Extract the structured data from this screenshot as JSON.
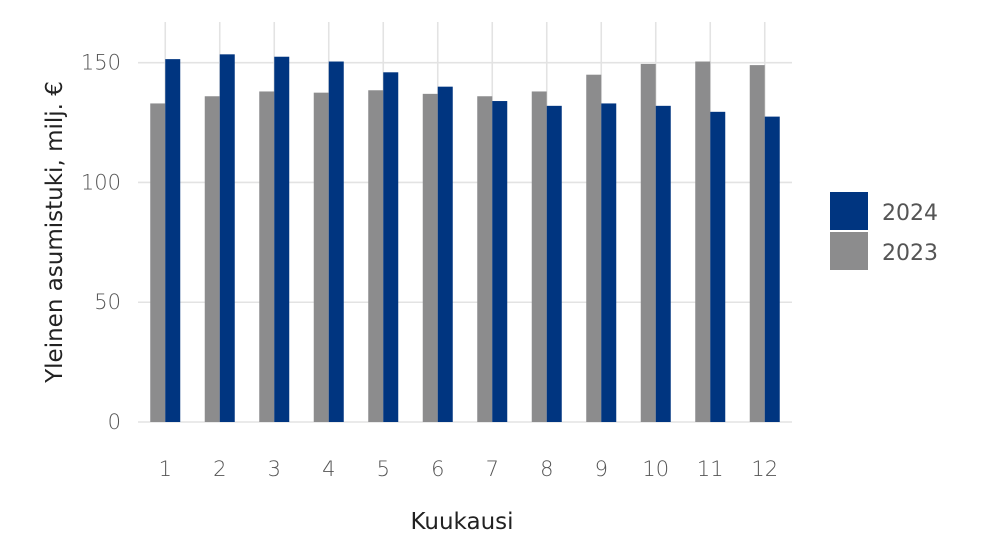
{
  "chart_data": {
    "type": "bar",
    "categories": [
      "1",
      "2",
      "3",
      "4",
      "5",
      "6",
      "7",
      "8",
      "9",
      "10",
      "11",
      "12"
    ],
    "series": [
      {
        "name": "2023",
        "color": "#8c8c8d",
        "values": [
          133,
          136,
          138,
          137.5,
          138.5,
          137,
          136,
          138,
          145,
          149.5,
          150.5,
          149
        ]
      },
      {
        "name": "2024",
        "color": "#003580",
        "values": [
          151.5,
          153.5,
          152.5,
          150.5,
          146,
          140,
          134,
          132,
          133,
          132,
          129.5,
          127.5
        ]
      }
    ],
    "legend_order": [
      "2024",
      "2023"
    ],
    "legend_position": "right",
    "xlabel": "Kuukausi",
    "ylabel": "Yleinen asumistuki, milj. €",
    "yticks": [
      0,
      50,
      100,
      150
    ],
    "ylim": [
      0,
      167
    ],
    "grid": true
  }
}
